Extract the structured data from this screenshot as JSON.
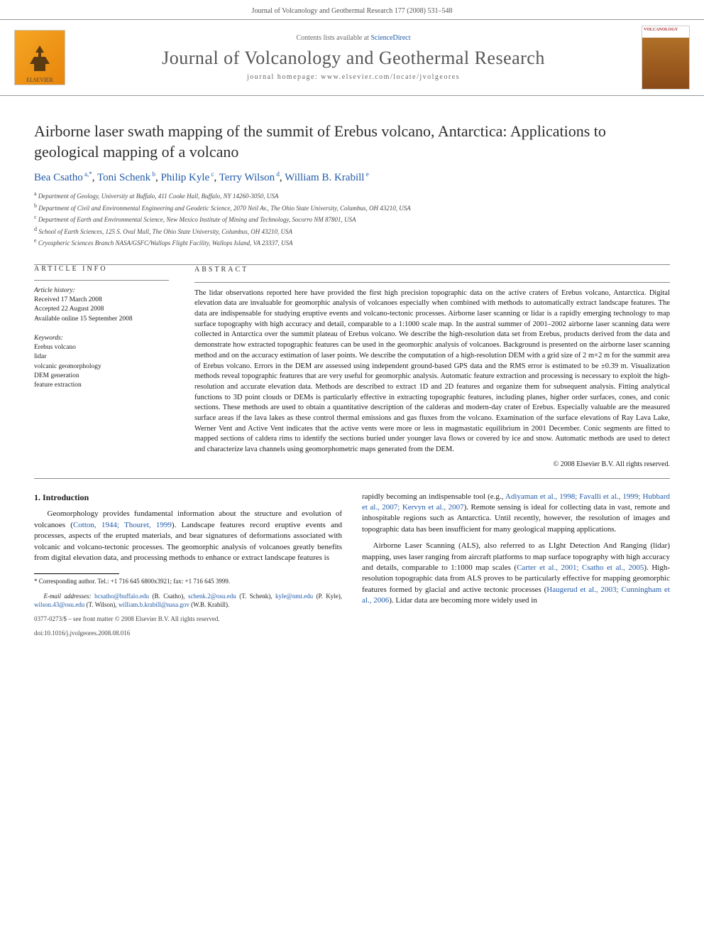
{
  "running_head": "Journal of Volcanology and Geothermal Research 177 (2008) 531–548",
  "banner": {
    "contents_prefix": "Contents lists available at ",
    "contents_link": "ScienceDirect",
    "journal_name": "Journal of Volcanology and Geothermal Research",
    "homepage_prefix": "journal homepage: ",
    "homepage": "www.elsevier.com/locate/jvolgeores",
    "elsevier_label": "ELSEVIER",
    "cover_label": "VOLCANOLOGY"
  },
  "title": "Airborne laser swath mapping of the summit of Erebus volcano, Antarctica: Applications to geological mapping of a volcano",
  "authors": [
    {
      "name": "Bea Csatho",
      "sup": "a,*"
    },
    {
      "name": "Toni Schenk",
      "sup": "b"
    },
    {
      "name": "Philip Kyle",
      "sup": "c"
    },
    {
      "name": "Terry Wilson",
      "sup": "d"
    },
    {
      "name": "William B. Krabill",
      "sup": "e"
    }
  ],
  "affiliations": [
    {
      "sup": "a",
      "text": "Department of Geology, University at Buffalo, 411 Cooke Hall, Buffalo, NY 14260-3050, USA"
    },
    {
      "sup": "b",
      "text": "Department of Civil and Environmental Engineering and Geodetic Science, 2070 Neil Av., The Ohio State University, Columbus, OH 43210, USA"
    },
    {
      "sup": "c",
      "text": "Department of Earth and Environmental Science, New Mexico Institute of Mining and Technology, Socorro NM 87801, USA"
    },
    {
      "sup": "d",
      "text": "School of Earth Sciences, 125 S. Oval Mall, The Ohio State University, Columbus, OH 43210, USA"
    },
    {
      "sup": "e",
      "text": "Cryospheric Sciences Branch NASA/GSFC/Wallops Flight Facility, Wallops Island, VA 23337, USA"
    }
  ],
  "info": {
    "head": "ARTICLE INFO",
    "history_head": "Article history:",
    "history": "Received 17 March 2008\nAccepted 22 August 2008\nAvailable online 15 September 2008",
    "keywords_head": "Keywords:",
    "keywords": "Erebus volcano\nlidar\nvolcanic geomorphology\nDEM generation\nfeature extraction"
  },
  "abstract": {
    "head": "ABSTRACT",
    "text": "The lidar observations reported here have provided the first high precision topographic data on the active craters of Erebus volcano, Antarctica. Digital elevation data are invaluable for geomorphic analysis of volcanoes especially when combined with methods to automatically extract landscape features. The data are indispensable for studying eruptive events and volcano-tectonic processes. Airborne laser scanning or lidar is a rapidly emerging technology to map surface topography with high accuracy and detail, comparable to a 1:1000 scale map. In the austral summer of 2001–2002 airborne laser scanning data were collected in Antarctica over the summit plateau of Erebus volcano. We describe the high-resolution data set from Erebus, products derived from the data and demonstrate how extracted topographic features can be used in the geomorphic analysis of volcanoes. Background is presented on the airborne laser scanning method and on the accuracy estimation of laser points. We describe the computation of a high-resolution DEM with a grid size of 2 m×2 m for the summit area of Erebus volcano. Errors in the DEM are assessed using independent ground-based GPS data and the RMS error is estimated to be ±0.39 m. Visualization methods reveal topographic features that are very useful for geomorphic analysis. Automatic feature extraction and processing is necessary to exploit the high-resolution and accurate elevation data. Methods are described to extract 1D and 2D features and organize them for subsequent analysis. Fitting analytical functions to 3D point clouds or DEMs is particularly effective in extracting topographic features, including planes, higher order surfaces, cones, and conic sections. These methods are used to obtain a quantitative description of the calderas and modern-day crater of Erebus. Especially valuable are the measured surface areas if the lava lakes as these control thermal emissions and gas fluxes from the volcano. Examination of the surface elevations of Ray Lava Lake, Werner Vent and Active Vent indicates that the active vents were more or less in magmastatic equilibrium in 2001 December. Conic segments are fitted to mapped sections of caldera rims to identify the sections buried under younger lava flows or covered by ice and snow. Automatic methods are used to detect and characterize lava channels using geomorphometric maps generated from the DEM.",
    "copyright": "© 2008 Elsevier B.V. All rights reserved."
  },
  "body": {
    "section_num": "1.",
    "section_title": "Introduction",
    "para1_a": "Geomorphology provides fundamental information about the structure and evolution of volcanoes (",
    "para1_link": "Cotton, 1944; Thouret, 1999",
    "para1_b": "). Landscape features record eruptive events and processes, aspects of the erupted materials, and bear signatures of deformations associated with volcanic and volcano-tectonic processes. The geomorphic analysis of volcanoes greatly benefits from digital elevation data, and processing methods to enhance or extract landscape features is",
    "para2_a": "rapidly becoming an indispensable tool (e.g., ",
    "para2_link": "Adiyaman et al., 1998; Favalli et al., 1999; Hubbard et al., 2007; Kervyn et al., 2007",
    "para2_b": "). Remote sensing is ideal for collecting data in vast, remote and inhospitable regions such as Antarctica. Until recently, however, the resolution of images and topographic data has been insufficient for many geological mapping applications.",
    "para3_a": "Airborne Laser Scanning (ALS), also referred to as LIght Detection And Ranging (lidar) mapping, uses laser ranging from aircraft platforms to map surface topography with high accuracy and details, comparable to 1:1000 map scales (",
    "para3_link1": "Carter et al., 2001; Csatho et al., 2005",
    "para3_c": "). High-resolution topographic data from ALS proves to be particularly effective for mapping geomorphic features formed by glacial and active tectonic processes (",
    "para3_link2": "Haugerud et al., 2003; Cunningham et al., 2006",
    "para3_d": "). Lidar data are becoming more widely used in"
  },
  "footnotes": {
    "corr_label": "* Corresponding author. Tel.: +1 716 645 6800x3921; fax: +1 716 645 3999.",
    "email_label": "E-mail addresses:",
    "emails": [
      {
        "addr": "bcsatho@buffalo.edu",
        "who": "(B. Csatho),"
      },
      {
        "addr": "schenk.2@osu.edu",
        "who": "(T. Schenk),"
      },
      {
        "addr": "kyle@nmt.edu",
        "who": "(P. Kyle),"
      },
      {
        "addr": "wilson.43@osu.edu",
        "who": "(T. Wilson),"
      },
      {
        "addr": "william.b.krabill@nasa.gov",
        "who": "(W.B. Krabill)."
      }
    ],
    "issn": "0377-0273/$ – see front matter © 2008 Elsevier B.V. All rights reserved.",
    "doi": "doi:10.1016/j.jvolgeores.2008.08.016"
  }
}
